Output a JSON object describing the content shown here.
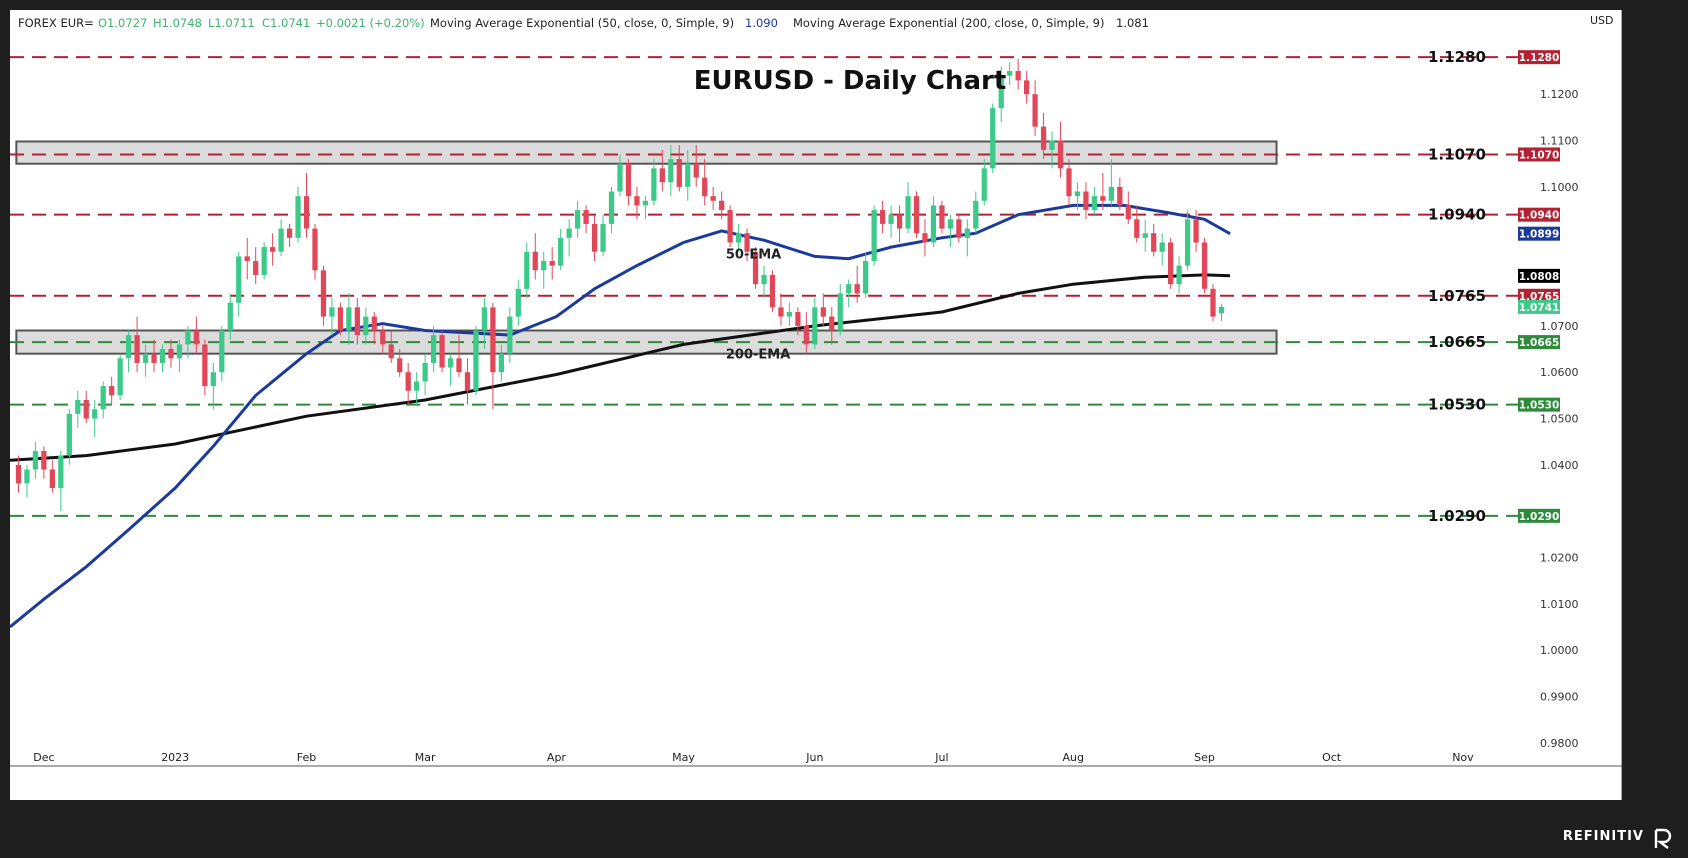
{
  "header": {
    "symbol": "FOREX EUR=",
    "open": "O1.0727",
    "high": "H1.0748",
    "low": "L1.0711",
    "close": "C1.0741",
    "change": "+0.0021 (+0.20%)",
    "ema50_label": "Moving Average Exponential (50, close, 0, Simple, 9)",
    "ema50_value": "1.090",
    "ema200_label": "Moving Average Exponential (200, close, 0, Simple, 9)",
    "ema200_value": "1.081"
  },
  "footer": {
    "brand": "REFINITIV"
  },
  "colors": {
    "up": "#26a69a",
    "down": "#ef5350",
    "up_body": "#3cc98a",
    "down_body": "#e0485a",
    "ema50": "#1a3a9c",
    "ema200": "#111111",
    "resistance": "#b22232",
    "support": "#2e8b3c",
    "zone_fill": "#dcdcdc",
    "zone_border": "#555555"
  },
  "chart_data": {
    "type": "candlestick",
    "title": "EURUSD - Daily Chart",
    "currency": "USD",
    "ylim": [
      0.975,
      1.133
    ],
    "y_ticks": [
      "1.1200",
      "1.1100",
      "1.1000",
      "1.0700",
      "1.0600",
      "1.0500",
      "1.0400",
      "1.0200",
      "1.0100",
      "1.0000",
      "0.9900",
      "0.9800"
    ],
    "x_ticks": [
      {
        "label": "Dec",
        "day": 0
      },
      {
        "label": "2023",
        "day": 31
      },
      {
        "label": "Feb",
        "day": 62
      },
      {
        "label": "Mar",
        "day": 90
      },
      {
        "label": "Apr",
        "day": 121
      },
      {
        "label": "May",
        "day": 151
      },
      {
        "label": "Jun",
        "day": 182
      },
      {
        "label": "Jul",
        "day": 212
      },
      {
        "label": "Aug",
        "day": 243
      },
      {
        "label": "Sep",
        "day": 274
      },
      {
        "label": "Oct",
        "day": 304
      },
      {
        "label": "Nov",
        "day": 335
      }
    ],
    "x_range_days": [
      -8,
      348
    ],
    "levels": [
      {
        "value": 1.128,
        "label": "1.1280",
        "kind": "resistance"
      },
      {
        "value": 1.107,
        "label": "1.1070",
        "kind": "resistance"
      },
      {
        "value": 1.094,
        "label": "1.0940",
        "kind": "resistance"
      },
      {
        "value": 1.0765,
        "label": "1.0765",
        "kind": "resistance"
      },
      {
        "value": 1.0665,
        "label": "1.0665",
        "kind": "support"
      },
      {
        "value": 1.053,
        "label": "1.0530",
        "kind": "support"
      },
      {
        "value": 1.029,
        "label": "1.0290",
        "kind": "support"
      }
    ],
    "price_tags": [
      {
        "value": 1.128,
        "label": "1.1280",
        "kind": "resistance"
      },
      {
        "value": 1.107,
        "label": "1.1070",
        "kind": "resistance"
      },
      {
        "value": 1.094,
        "label": "1.0940",
        "kind": "resistance"
      },
      {
        "value": 1.0899,
        "label": "1.0899",
        "kind": "ema50"
      },
      {
        "value": 1.0808,
        "label": "1.0808",
        "kind": "ema200"
      },
      {
        "value": 1.0765,
        "label": "1.0765",
        "kind": "resistance"
      },
      {
        "value": 1.0741,
        "label": "1.0741",
        "kind": "last"
      },
      {
        "value": 1.0665,
        "label": "1.0665",
        "kind": "support"
      },
      {
        "value": 1.053,
        "label": "1.0530",
        "kind": "support"
      },
      {
        "value": 1.029,
        "label": "1.0290",
        "kind": "support"
      }
    ],
    "zones": [
      {
        "from": 1.105,
        "to": 1.1098
      },
      {
        "from": 1.064,
        "to": 1.069
      }
    ],
    "annotations": [
      {
        "text": "50-EMA",
        "day": 161,
        "value": 1.0845
      },
      {
        "text": "200-EMA",
        "day": 161,
        "value": 1.063
      }
    ],
    "ema50": [
      {
        "day": -8,
        "v": 1.005
      },
      {
        "day": 0,
        "v": 1.011
      },
      {
        "day": 10,
        "v": 1.018
      },
      {
        "day": 20,
        "v": 1.026
      },
      {
        "day": 31,
        "v": 1.035
      },
      {
        "day": 40,
        "v": 1.044
      },
      {
        "day": 50,
        "v": 1.055
      },
      {
        "day": 62,
        "v": 1.064
      },
      {
        "day": 70,
        "v": 1.069
      },
      {
        "day": 80,
        "v": 1.0705
      },
      {
        "day": 90,
        "v": 1.069
      },
      {
        "day": 100,
        "v": 1.0685
      },
      {
        "day": 110,
        "v": 1.068
      },
      {
        "day": 121,
        "v": 1.072
      },
      {
        "day": 130,
        "v": 1.078
      },
      {
        "day": 140,
        "v": 1.083
      },
      {
        "day": 151,
        "v": 1.088
      },
      {
        "day": 160,
        "v": 1.0905
      },
      {
        "day": 170,
        "v": 1.0885
      },
      {
        "day": 182,
        "v": 1.085
      },
      {
        "day": 190,
        "v": 1.0845
      },
      {
        "day": 200,
        "v": 1.087
      },
      {
        "day": 212,
        "v": 1.089
      },
      {
        "day": 220,
        "v": 1.09
      },
      {
        "day": 230,
        "v": 1.094
      },
      {
        "day": 243,
        "v": 1.096
      },
      {
        "day": 255,
        "v": 1.096
      },
      {
        "day": 265,
        "v": 1.0945
      },
      {
        "day": 274,
        "v": 1.093
      },
      {
        "day": 280,
        "v": 1.0899
      }
    ],
    "ema200": [
      {
        "day": -8,
        "v": 1.041
      },
      {
        "day": 10,
        "v": 1.042
      },
      {
        "day": 31,
        "v": 1.0445
      },
      {
        "day": 62,
        "v": 1.0505
      },
      {
        "day": 90,
        "v": 1.054
      },
      {
        "day": 121,
        "v": 1.0595
      },
      {
        "day": 151,
        "v": 1.066
      },
      {
        "day": 182,
        "v": 1.07
      },
      {
        "day": 212,
        "v": 1.073
      },
      {
        "day": 230,
        "v": 1.077
      },
      {
        "day": 243,
        "v": 1.079
      },
      {
        "day": 260,
        "v": 1.0805
      },
      {
        "day": 274,
        "v": 1.081
      },
      {
        "day": 280,
        "v": 1.0808
      }
    ],
    "candles": [
      [
        -6,
        1.04,
        1.042,
        1.034,
        1.036
      ],
      [
        -4,
        1.036,
        1.04,
        1.033,
        1.039
      ],
      [
        -2,
        1.039,
        1.045,
        1.037,
        1.043
      ],
      [
        0,
        1.043,
        1.044,
        1.037,
        1.039
      ],
      [
        2,
        1.039,
        1.041,
        1.034,
        1.035
      ],
      [
        4,
        1.035,
        1.043,
        1.03,
        1.042
      ],
      [
        6,
        1.042,
        1.052,
        1.04,
        1.051
      ],
      [
        8,
        1.051,
        1.056,
        1.048,
        1.054
      ],
      [
        10,
        1.054,
        1.056,
        1.049,
        1.05
      ],
      [
        12,
        1.05,
        1.054,
        1.046,
        1.052
      ],
      [
        14,
        1.052,
        1.058,
        1.05,
        1.057
      ],
      [
        16,
        1.057,
        1.059,
        1.053,
        1.055
      ],
      [
        18,
        1.055,
        1.064,
        1.054,
        1.063
      ],
      [
        20,
        1.063,
        1.069,
        1.06,
        1.068
      ],
      [
        22,
        1.068,
        1.072,
        1.06,
        1.062
      ],
      [
        24,
        1.062,
        1.066,
        1.059,
        1.064
      ],
      [
        26,
        1.064,
        1.067,
        1.06,
        1.062
      ],
      [
        28,
        1.062,
        1.066,
        1.06,
        1.065
      ],
      [
        30,
        1.065,
        1.067,
        1.061,
        1.063
      ],
      [
        32,
        1.063,
        1.067,
        1.06,
        1.066
      ],
      [
        34,
        1.066,
        1.07,
        1.063,
        1.069
      ],
      [
        36,
        1.069,
        1.072,
        1.064,
        1.066
      ],
      [
        38,
        1.066,
        1.067,
        1.055,
        1.057
      ],
      [
        40,
        1.057,
        1.062,
        1.052,
        1.06
      ],
      [
        42,
        1.06,
        1.07,
        1.058,
        1.069
      ],
      [
        44,
        1.069,
        1.077,
        1.067,
        1.075
      ],
      [
        46,
        1.075,
        1.086,
        1.072,
        1.085
      ],
      [
        48,
        1.085,
        1.089,
        1.08,
        1.084
      ],
      [
        50,
        1.084,
        1.087,
        1.079,
        1.081
      ],
      [
        52,
        1.081,
        1.088,
        1.08,
        1.087
      ],
      [
        54,
        1.087,
        1.09,
        1.083,
        1.086
      ],
      [
        56,
        1.086,
        1.093,
        1.085,
        1.091
      ],
      [
        58,
        1.091,
        1.092,
        1.087,
        1.089
      ],
      [
        60,
        1.089,
        1.1,
        1.088,
        1.098
      ],
      [
        62,
        1.098,
        1.103,
        1.089,
        1.091
      ],
      [
        64,
        1.091,
        1.092,
        1.08,
        1.082
      ],
      [
        66,
        1.082,
        1.083,
        1.07,
        1.072
      ],
      [
        68,
        1.072,
        1.076,
        1.068,
        1.074
      ],
      [
        70,
        1.074,
        1.075,
        1.068,
        1.069
      ],
      [
        72,
        1.069,
        1.077,
        1.066,
        1.074
      ],
      [
        74,
        1.074,
        1.076,
        1.066,
        1.068
      ],
      [
        76,
        1.068,
        1.074,
        1.066,
        1.072
      ],
      [
        78,
        1.072,
        1.073,
        1.066,
        1.069
      ],
      [
        80,
        1.069,
        1.07,
        1.064,
        1.066
      ],
      [
        82,
        1.066,
        1.069,
        1.062,
        1.063
      ],
      [
        84,
        1.063,
        1.065,
        1.059,
        1.06
      ],
      [
        86,
        1.06,
        1.062,
        1.053,
        1.056
      ],
      [
        88,
        1.056,
        1.06,
        1.053,
        1.058
      ],
      [
        90,
        1.058,
        1.064,
        1.055,
        1.062
      ],
      [
        92,
        1.062,
        1.07,
        1.06,
        1.068
      ],
      [
        94,
        1.068,
        1.069,
        1.06,
        1.061
      ],
      [
        96,
        1.061,
        1.064,
        1.057,
        1.063
      ],
      [
        98,
        1.063,
        1.068,
        1.059,
        1.06
      ],
      [
        100,
        1.06,
        1.063,
        1.053,
        1.056
      ],
      [
        102,
        1.056,
        1.07,
        1.055,
        1.069
      ],
      [
        104,
        1.069,
        1.076,
        1.065,
        1.074
      ],
      [
        106,
        1.074,
        1.075,
        1.052,
        1.06
      ],
      [
        108,
        1.06,
        1.066,
        1.058,
        1.064
      ],
      [
        110,
        1.064,
        1.074,
        1.062,
        1.072
      ],
      [
        112,
        1.072,
        1.08,
        1.07,
        1.078
      ],
      [
        114,
        1.078,
        1.088,
        1.076,
        1.086
      ],
      [
        116,
        1.086,
        1.09,
        1.08,
        1.082
      ],
      [
        118,
        1.082,
        1.086,
        1.078,
        1.084
      ],
      [
        120,
        1.084,
        1.087,
        1.08,
        1.083
      ],
      [
        122,
        1.083,
        1.091,
        1.082,
        1.089
      ],
      [
        124,
        1.089,
        1.093,
        1.085,
        1.091
      ],
      [
        126,
        1.091,
        1.097,
        1.089,
        1.095
      ],
      [
        128,
        1.095,
        1.096,
        1.09,
        1.092
      ],
      [
        130,
        1.092,
        1.094,
        1.084,
        1.086
      ],
      [
        132,
        1.086,
        1.094,
        1.085,
        1.092
      ],
      [
        134,
        1.092,
        1.1,
        1.09,
        1.099
      ],
      [
        136,
        1.099,
        1.107,
        1.098,
        1.105
      ],
      [
        138,
        1.105,
        1.106,
        1.096,
        1.098
      ],
      [
        140,
        1.098,
        1.1,
        1.093,
        1.096
      ],
      [
        142,
        1.096,
        1.098,
        1.093,
        1.097
      ],
      [
        144,
        1.097,
        1.106,
        1.096,
        1.104
      ],
      [
        146,
        1.104,
        1.108,
        1.099,
        1.101
      ],
      [
        148,
        1.101,
        1.109,
        1.098,
        1.106
      ],
      [
        150,
        1.106,
        1.109,
        1.099,
        1.1
      ],
      [
        152,
        1.1,
        1.108,
        1.097,
        1.105
      ],
      [
        154,
        1.105,
        1.109,
        1.1,
        1.102
      ],
      [
        156,
        1.102,
        1.106,
        1.096,
        1.098
      ],
      [
        158,
        1.098,
        1.1,
        1.095,
        1.097
      ],
      [
        160,
        1.097,
        1.099,
        1.093,
        1.095
      ],
      [
        162,
        1.095,
        1.096,
        1.087,
        1.088
      ],
      [
        164,
        1.088,
        1.092,
        1.086,
        1.09
      ],
      [
        166,
        1.09,
        1.091,
        1.084,
        1.086
      ],
      [
        168,
        1.086,
        1.087,
        1.078,
        1.079
      ],
      [
        170,
        1.079,
        1.083,
        1.076,
        1.081
      ],
      [
        172,
        1.081,
        1.082,
        1.073,
        1.074
      ],
      [
        174,
        1.074,
        1.077,
        1.07,
        1.072
      ],
      [
        176,
        1.072,
        1.075,
        1.07,
        1.073
      ],
      [
        178,
        1.073,
        1.074,
        1.068,
        1.07
      ],
      [
        180,
        1.07,
        1.073,
        1.064,
        1.066
      ],
      [
        182,
        1.066,
        1.076,
        1.065,
        1.074
      ],
      [
        184,
        1.074,
        1.077,
        1.07,
        1.072
      ],
      [
        186,
        1.072,
        1.074,
        1.066,
        1.069
      ],
      [
        188,
        1.069,
        1.079,
        1.068,
        1.077
      ],
      [
        190,
        1.077,
        1.08,
        1.074,
        1.079
      ],
      [
        192,
        1.079,
        1.083,
        1.075,
        1.077
      ],
      [
        194,
        1.077,
        1.086,
        1.076,
        1.084
      ],
      [
        196,
        1.084,
        1.096,
        1.083,
        1.095
      ],
      [
        198,
        1.095,
        1.097,
        1.09,
        1.092
      ],
      [
        200,
        1.092,
        1.096,
        1.089,
        1.094
      ],
      [
        202,
        1.094,
        1.096,
        1.088,
        1.091
      ],
      [
        204,
        1.091,
        1.101,
        1.09,
        1.098
      ],
      [
        206,
        1.098,
        1.099,
        1.089,
        1.09
      ],
      [
        208,
        1.09,
        1.093,
        1.085,
        1.088
      ],
      [
        210,
        1.088,
        1.098,
        1.087,
        1.096
      ],
      [
        212,
        1.096,
        1.097,
        1.09,
        1.091
      ],
      [
        214,
        1.091,
        1.094,
        1.087,
        1.093
      ],
      [
        216,
        1.093,
        1.094,
        1.088,
        1.089
      ],
      [
        218,
        1.089,
        1.093,
        1.085,
        1.091
      ],
      [
        220,
        1.091,
        1.099,
        1.09,
        1.097
      ],
      [
        222,
        1.097,
        1.106,
        1.096,
        1.104
      ],
      [
        224,
        1.104,
        1.118,
        1.103,
        1.117
      ],
      [
        226,
        1.117,
        1.126,
        1.114,
        1.124
      ],
      [
        228,
        1.124,
        1.127,
        1.122,
        1.125
      ],
      [
        230,
        1.125,
        1.1276,
        1.121,
        1.123
      ],
      [
        232,
        1.123,
        1.125,
        1.118,
        1.12
      ],
      [
        234,
        1.12,
        1.123,
        1.111,
        1.113
      ],
      [
        236,
        1.113,
        1.116,
        1.106,
        1.108
      ],
      [
        238,
        1.108,
        1.112,
        1.104,
        1.11
      ],
      [
        240,
        1.11,
        1.114,
        1.102,
        1.104
      ],
      [
        242,
        1.104,
        1.106,
        1.096,
        1.098
      ],
      [
        244,
        1.098,
        1.101,
        1.095,
        1.099
      ],
      [
        246,
        1.099,
        1.101,
        1.093,
        1.095
      ],
      [
        248,
        1.095,
        1.1,
        1.094,
        1.098
      ],
      [
        250,
        1.098,
        1.103,
        1.095,
        1.097
      ],
      [
        252,
        1.097,
        1.106,
        1.096,
        1.1
      ],
      [
        254,
        1.1,
        1.102,
        1.095,
        1.096
      ],
      [
        256,
        1.096,
        1.099,
        1.092,
        1.093
      ],
      [
        258,
        1.093,
        1.096,
        1.088,
        1.089
      ],
      [
        260,
        1.089,
        1.093,
        1.086,
        1.09
      ],
      [
        262,
        1.09,
        1.092,
        1.085,
        1.086
      ],
      [
        264,
        1.086,
        1.09,
        1.083,
        1.088
      ],
      [
        266,
        1.088,
        1.089,
        1.078,
        1.079
      ],
      [
        268,
        1.079,
        1.085,
        1.077,
        1.083
      ],
      [
        270,
        1.083,
        1.095,
        1.082,
        1.093
      ],
      [
        272,
        1.093,
        1.095,
        1.086,
        1.088
      ],
      [
        274,
        1.088,
        1.089,
        1.077,
        1.078
      ],
      [
        276,
        1.078,
        1.079,
        1.071,
        1.072
      ],
      [
        278,
        1.0727,
        1.0748,
        1.0711,
        1.0741
      ]
    ]
  }
}
